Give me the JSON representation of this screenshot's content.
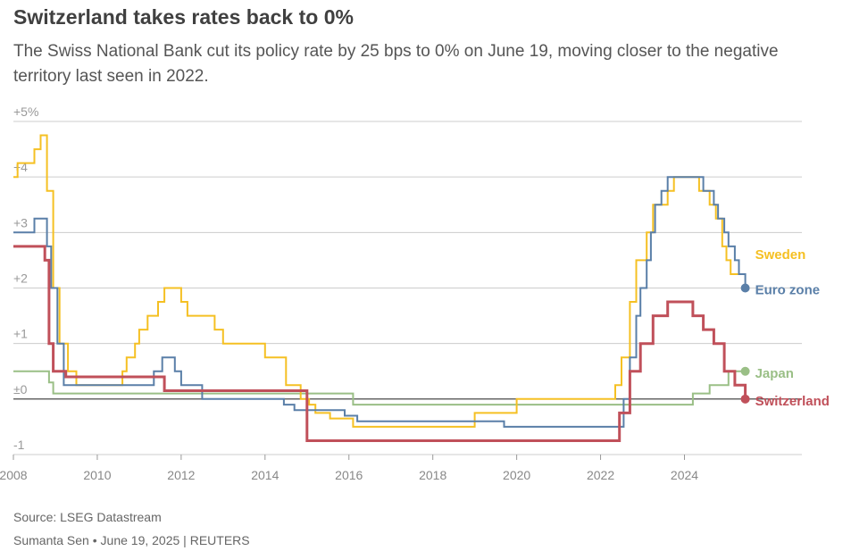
{
  "title": "Switzerland takes rates back to 0%",
  "subtitle": "The Swiss National Bank cut its policy rate by 25 bps to 0% on June 19, moving closer to the negative territory last seen in 2022.",
  "source": "Source: LSEG Datastream",
  "credit": {
    "author": "Sumanta Sen",
    "separator": "•",
    "date": "June 19, 2025",
    "divider": "|",
    "outlet": "REUTERS"
  },
  "colors": {
    "sweden": "#f5c023",
    "euro_zone": "#5a7fa8",
    "japan": "#9abf86",
    "switzerland": "#c0505a",
    "grid": "#cccccc",
    "zero_line": "#333333"
  },
  "chart_data": {
    "type": "line",
    "step": true,
    "xlim": [
      2008,
      2026.8
    ],
    "ylim": [
      -1,
      5
    ],
    "x_ticks": [
      2008,
      2010,
      2012,
      2014,
      2016,
      2018,
      2020,
      2022,
      2024
    ],
    "y_ticks": [
      {
        "value": 5,
        "label": "+5%"
      },
      {
        "value": 4,
        "label": "+4"
      },
      {
        "value": 3,
        "label": "+3"
      },
      {
        "value": 2,
        "label": "+2"
      },
      {
        "value": 1,
        "label": "+1"
      },
      {
        "value": 0,
        "label": "±0"
      },
      {
        "value": -1,
        "label": "-1"
      }
    ],
    "grid": true,
    "series": [
      {
        "name": "Sweden",
        "key": "sweden",
        "end_marker": false,
        "points": [
          [
            2008.0,
            4.0
          ],
          [
            2008.1,
            4.25
          ],
          [
            2008.5,
            4.5
          ],
          [
            2008.65,
            4.75
          ],
          [
            2008.8,
            3.75
          ],
          [
            2008.95,
            2.0
          ],
          [
            2009.1,
            1.0
          ],
          [
            2009.3,
            0.5
          ],
          [
            2009.5,
            0.25
          ],
          [
            2010.5,
            0.25
          ],
          [
            2010.6,
            0.5
          ],
          [
            2010.7,
            0.75
          ],
          [
            2010.9,
            1.0
          ],
          [
            2011.0,
            1.25
          ],
          [
            2011.2,
            1.5
          ],
          [
            2011.45,
            1.75
          ],
          [
            2011.6,
            2.0
          ],
          [
            2012.0,
            1.75
          ],
          [
            2012.15,
            1.5
          ],
          [
            2012.8,
            1.25
          ],
          [
            2013.0,
            1.0
          ],
          [
            2014.0,
            0.75
          ],
          [
            2014.5,
            0.25
          ],
          [
            2014.85,
            0.0
          ],
          [
            2015.05,
            -0.1
          ],
          [
            2015.2,
            -0.25
          ],
          [
            2015.55,
            -0.35
          ],
          [
            2016.1,
            -0.5
          ],
          [
            2019.0,
            -0.25
          ],
          [
            2020.0,
            0.0
          ],
          [
            2022.35,
            0.25
          ],
          [
            2022.5,
            0.75
          ],
          [
            2022.7,
            1.75
          ],
          [
            2022.85,
            2.5
          ],
          [
            2023.1,
            3.0
          ],
          [
            2023.25,
            3.5
          ],
          [
            2023.6,
            3.75
          ],
          [
            2023.75,
            4.0
          ],
          [
            2024.35,
            3.75
          ],
          [
            2024.6,
            3.5
          ],
          [
            2024.75,
            3.25
          ],
          [
            2024.9,
            2.75
          ],
          [
            2025.0,
            2.5
          ],
          [
            2025.1,
            2.25
          ],
          [
            2025.45,
            2.25
          ]
        ]
      },
      {
        "name": "Euro zone",
        "key": "euro_zone",
        "end_marker": true,
        "points": [
          [
            2008.0,
            3.0
          ],
          [
            2008.5,
            3.25
          ],
          [
            2008.8,
            2.75
          ],
          [
            2008.9,
            2.0
          ],
          [
            2009.05,
            1.0
          ],
          [
            2009.2,
            0.25
          ],
          [
            2011.35,
            0.5
          ],
          [
            2011.55,
            0.75
          ],
          [
            2011.85,
            0.5
          ],
          [
            2012.0,
            0.25
          ],
          [
            2012.5,
            0.0
          ],
          [
            2014.45,
            -0.1
          ],
          [
            2014.7,
            -0.2
          ],
          [
            2015.9,
            -0.3
          ],
          [
            2016.2,
            -0.4
          ],
          [
            2019.7,
            -0.5
          ],
          [
            2022.55,
            0.0
          ],
          [
            2022.7,
            0.75
          ],
          [
            2022.85,
            1.5
          ],
          [
            2022.95,
            2.0
          ],
          [
            2023.1,
            2.5
          ],
          [
            2023.2,
            3.0
          ],
          [
            2023.3,
            3.5
          ],
          [
            2023.45,
            3.75
          ],
          [
            2023.6,
            4.0
          ],
          [
            2024.45,
            3.75
          ],
          [
            2024.7,
            3.5
          ],
          [
            2024.8,
            3.25
          ],
          [
            2024.95,
            3.0
          ],
          [
            2025.05,
            2.75
          ],
          [
            2025.2,
            2.5
          ],
          [
            2025.3,
            2.25
          ],
          [
            2025.45,
            2.0
          ]
        ]
      },
      {
        "name": "Japan",
        "key": "japan",
        "end_marker": true,
        "points": [
          [
            2008.0,
            0.5
          ],
          [
            2008.85,
            0.3
          ],
          [
            2008.95,
            0.1
          ],
          [
            2016.1,
            -0.1
          ],
          [
            2024.2,
            0.1
          ],
          [
            2024.6,
            0.25
          ],
          [
            2025.05,
            0.5
          ],
          [
            2025.45,
            0.5
          ]
        ]
      },
      {
        "name": "Switzerland",
        "key": "switzerland",
        "end_marker": true,
        "points": [
          [
            2008.0,
            2.75
          ],
          [
            2008.75,
            2.5
          ],
          [
            2008.85,
            1.0
          ],
          [
            2008.95,
            0.5
          ],
          [
            2009.25,
            0.4
          ],
          [
            2011.6,
            0.15
          ],
          [
            2015.0,
            -0.75
          ],
          [
            2022.45,
            -0.25
          ],
          [
            2022.7,
            0.5
          ],
          [
            2022.95,
            1.0
          ],
          [
            2023.25,
            1.5
          ],
          [
            2023.6,
            1.75
          ],
          [
            2024.2,
            1.5
          ],
          [
            2024.45,
            1.25
          ],
          [
            2024.7,
            1.0
          ],
          [
            2024.95,
            0.5
          ],
          [
            2025.2,
            0.25
          ],
          [
            2025.45,
            0.0
          ]
        ]
      }
    ]
  }
}
